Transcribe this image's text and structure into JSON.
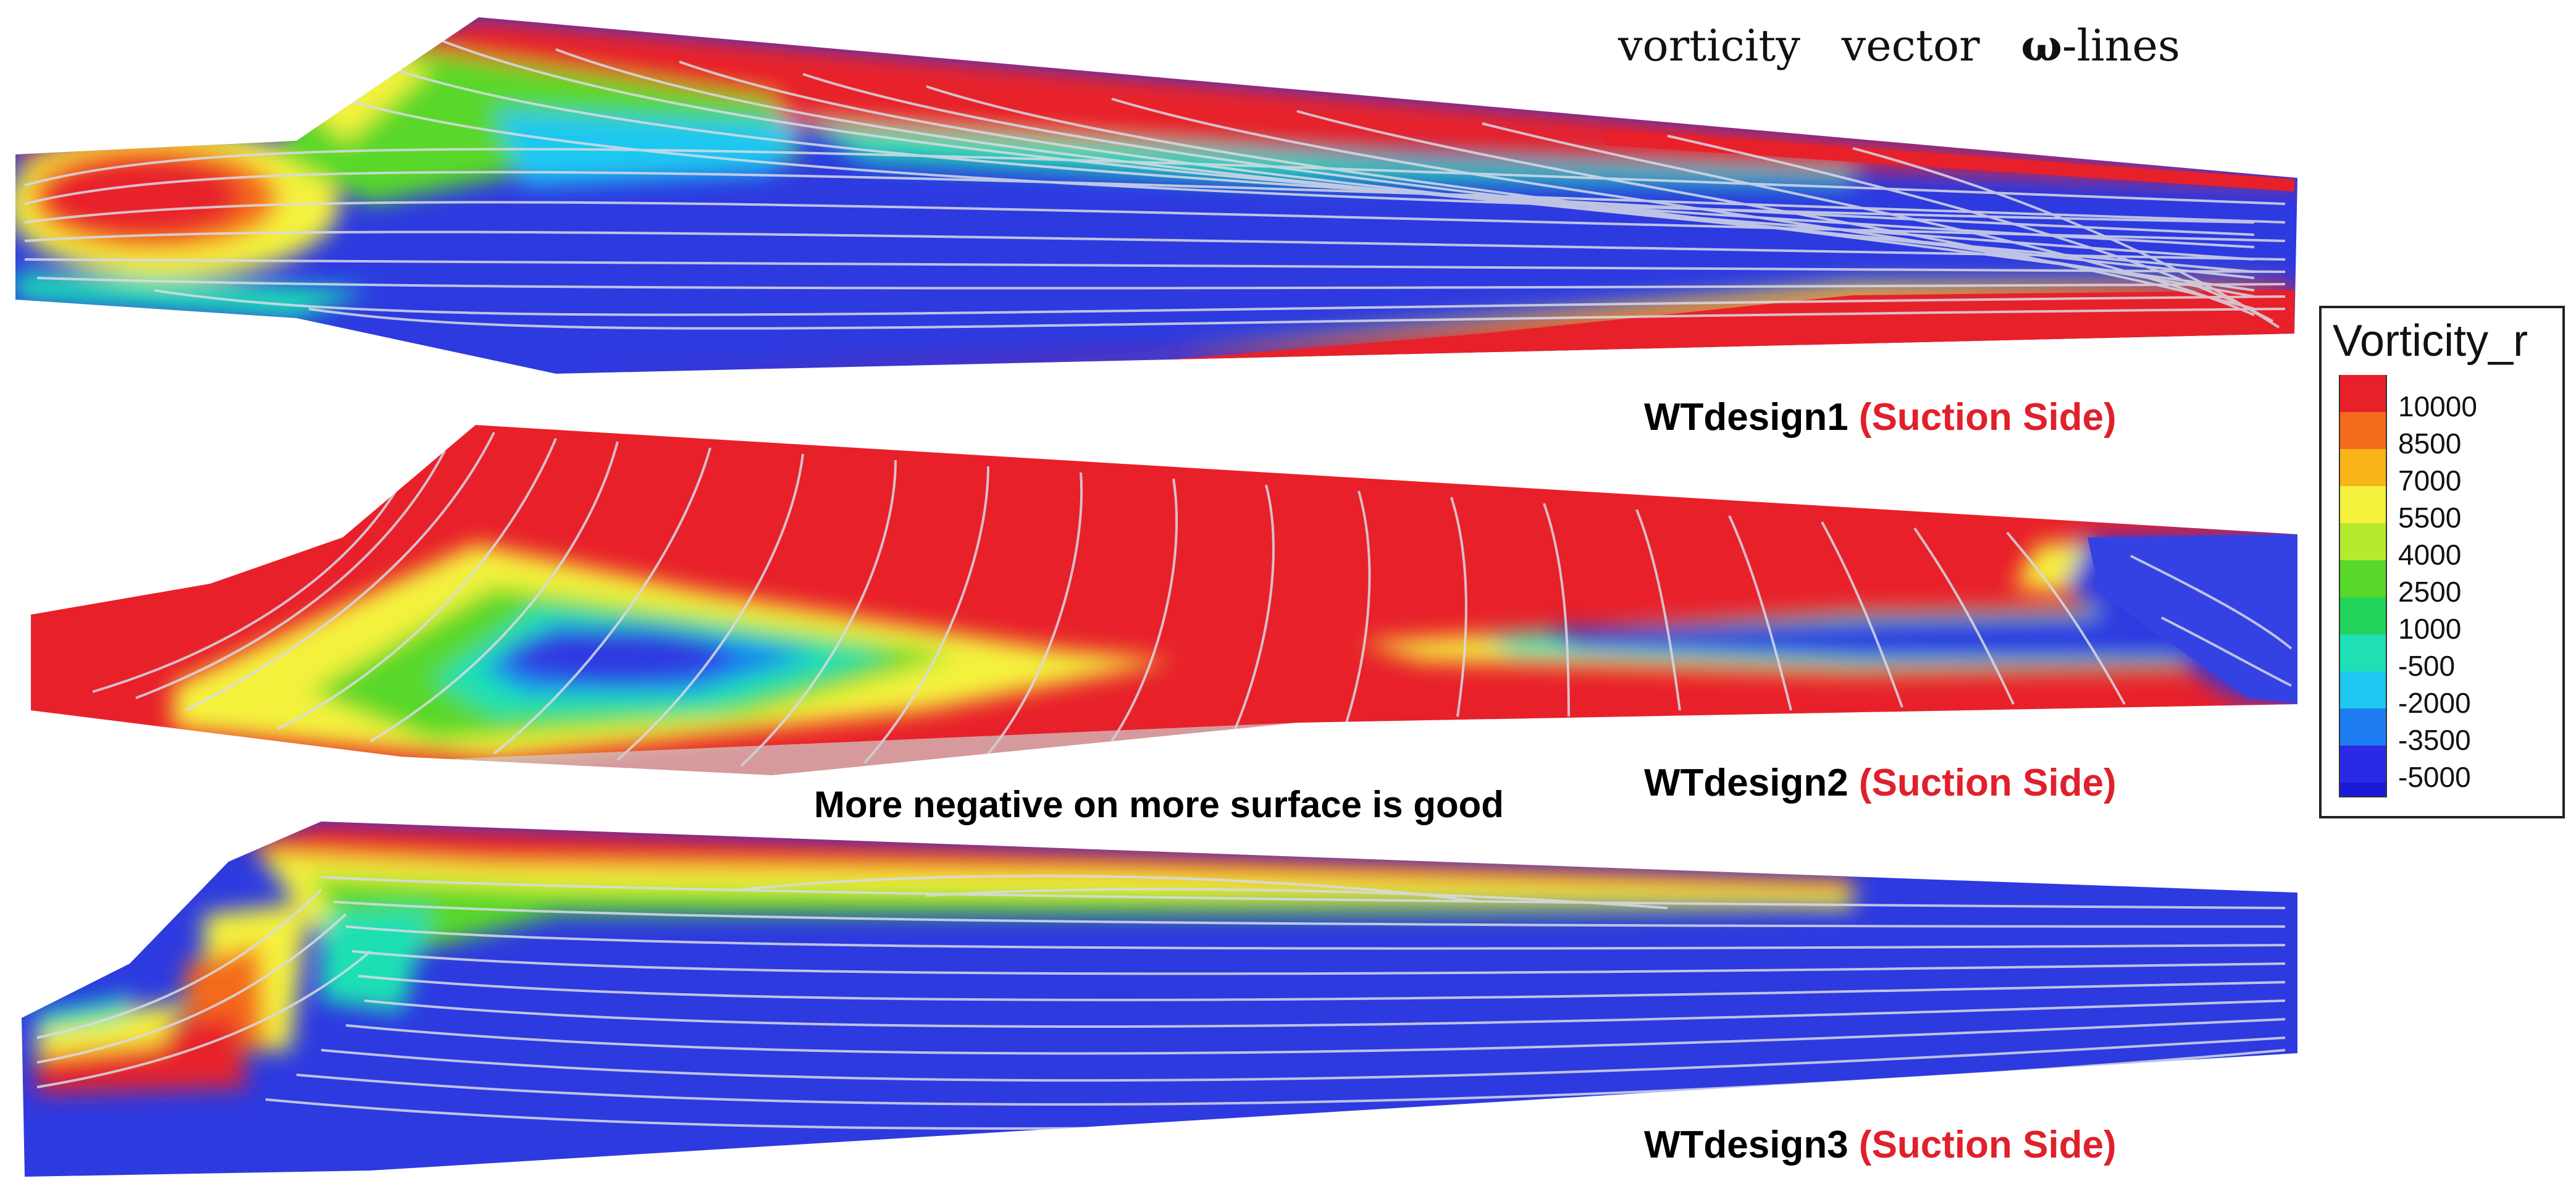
{
  "header": {
    "word1": "vorticity",
    "word2": "vector",
    "omega": "ω",
    "suffix": "-lines"
  },
  "designs": [
    {
      "name": "WTdesign1",
      "side": "(Suction Side)"
    },
    {
      "name": "WTdesign2",
      "side": "(Suction Side)"
    },
    {
      "name": "WTdesign3",
      "side": "(Suction Side)"
    }
  ],
  "note": "More negative on more surface is good",
  "legend": {
    "title": "Vorticity_r",
    "levels": [
      {
        "label": "10000",
        "color": "#e8202a"
      },
      {
        "label": "8500",
        "color": "#f46a1c"
      },
      {
        "label": "7000",
        "color": "#f9b41a"
      },
      {
        "label": "5500",
        "color": "#f4f23c"
      },
      {
        "label": "4000",
        "color": "#b6ea2e"
      },
      {
        "label": "2500",
        "color": "#58d82a"
      },
      {
        "label": "1000",
        "color": "#22d45a"
      },
      {
        "label": "-500",
        "color": "#1fe0b4"
      },
      {
        "label": "-2000",
        "color": "#1ec8f0"
      },
      {
        "label": "-3500",
        "color": "#1e7cf2"
      },
      {
        "label": "-5000",
        "color": "#2a2ae6"
      }
    ],
    "bottom_color": "#1a1ad6"
  }
}
